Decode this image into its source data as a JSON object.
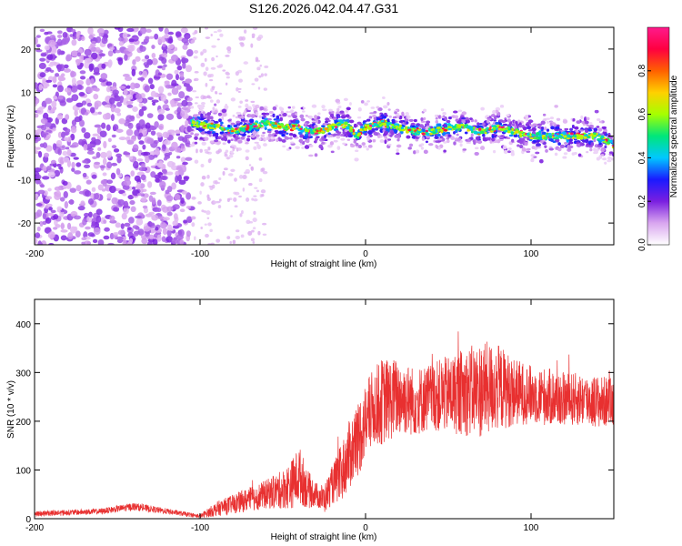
{
  "title": "S126.2026.042.04.47.G31",
  "chart_data": [
    {
      "type": "heatmap",
      "name": "spectrogram",
      "xlabel": "Height of straight line (km)",
      "ylabel": "Frequency (Hz)",
      "xlim": [
        -200,
        150
      ],
      "ylim": [
        -25,
        25
      ],
      "xticks": [
        -200,
        -100,
        0,
        100
      ],
      "xtick_labels": [
        "-200",
        "-100",
        "0",
        "100"
      ],
      "yticks": [
        -20,
        -10,
        0,
        10,
        20
      ],
      "ytick_labels": [
        "-20",
        "-10",
        "0",
        "10",
        "20"
      ],
      "colorbar": {
        "label": "Normalized spectral amplitude",
        "range": [
          0,
          1
        ],
        "ticks": [
          0.0,
          0.2,
          0.4,
          0.6,
          0.8
        ],
        "tick_labels": [
          "0.0",
          "0.2",
          "0.4",
          "0.6",
          "0.8"
        ],
        "stops": [
          "#ffffff",
          "#d9a6ef",
          "#7a1fe0",
          "#1a1aff",
          "#00c8ff",
          "#00e67a",
          "#a6ff00",
          "#ffd000",
          "#ff6000",
          "#ff0040",
          "#ff1a8c"
        ]
      },
      "noise_region": {
        "x_range": [
          -200,
          -105
        ],
        "f_range": [
          -25,
          25
        ],
        "level": 0.1
      },
      "signal_ridge": {
        "x": [
          -105,
          -90,
          -80,
          -70,
          -60,
          -50,
          -40,
          -35,
          -30,
          -20,
          -15,
          -10,
          -5,
          0,
          10,
          20,
          30,
          40,
          50,
          60,
          70,
          80,
          90,
          100,
          110,
          120,
          130,
          140,
          150
        ],
        "f": [
          3,
          2,
          1,
          2,
          3,
          2,
          2,
          1,
          1,
          2,
          3,
          2,
          0,
          2,
          3,
          2,
          1,
          1,
          2,
          2,
          1,
          2,
          1,
          0,
          0,
          0,
          0,
          0,
          -2
        ],
        "width_hz": 5
      }
    },
    {
      "type": "line",
      "name": "snr",
      "xlabel": "Height of straight line (km)",
      "ylabel": "SNR (10 * v/v)",
      "xlim": [
        -200,
        150
      ],
      "ylim": [
        0,
        450
      ],
      "xticks": [
        -200,
        -100,
        0,
        100
      ],
      "xtick_labels": [
        "-200",
        "-100",
        "0",
        "100"
      ],
      "yticks": [
        0,
        100,
        200,
        300,
        400
      ],
      "ytick_labels": [
        "0",
        "100",
        "200",
        "300",
        "400"
      ],
      "color": "#e83030",
      "envelope": {
        "x": [
          -200,
          -160,
          -140,
          -120,
          -100,
          -90,
          -80,
          -70,
          -60,
          -50,
          -45,
          -40,
          -35,
          -30,
          -25,
          -20,
          -15,
          -10,
          -5,
          0,
          5,
          10,
          20,
          30,
          40,
          50,
          60,
          70,
          80,
          90,
          100,
          110,
          120,
          130,
          140,
          150
        ],
        "mean": [
          10,
          15,
          25,
          15,
          5,
          20,
          30,
          40,
          50,
          60,
          70,
          90,
          60,
          50,
          40,
          70,
          90,
          130,
          160,
          200,
          230,
          240,
          250,
          240,
          250,
          255,
          260,
          265,
          270,
          260,
          255,
          250,
          245,
          245,
          240,
          240
        ],
        "spread": [
          6,
          6,
          8,
          6,
          4,
          15,
          20,
          25,
          30,
          40,
          50,
          60,
          40,
          25,
          30,
          40,
          60,
          70,
          80,
          80,
          80,
          90,
          80,
          70,
          70,
          80,
          90,
          100,
          90,
          70,
          60,
          60,
          55,
          55,
          55,
          50
        ]
      }
    }
  ]
}
